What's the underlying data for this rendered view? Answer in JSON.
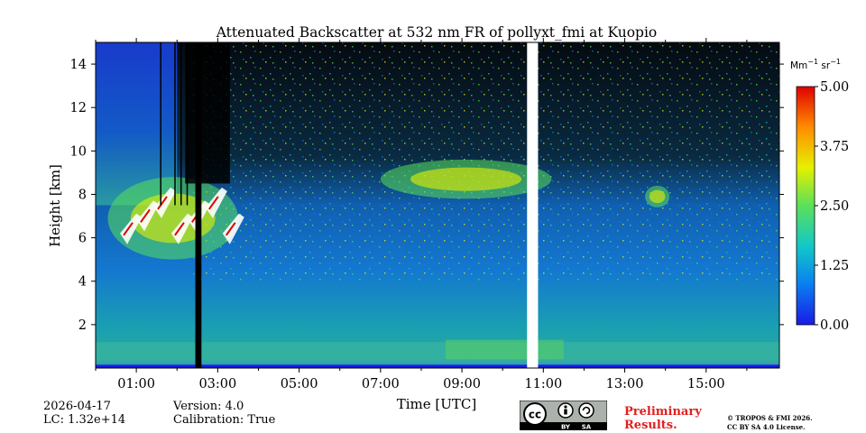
{
  "chart_data": {
    "type": "heatmap",
    "title": "Attenuated Backscatter at 532 nm FR of pollyxt_fmi at Kuopio",
    "xlabel": "Time [UTC]",
    "ylabel": "Height [km]",
    "xlim_hours": [
      0,
      16.8
    ],
    "ylim_km": [
      0,
      15
    ],
    "x_ticks": [
      {
        "hour": 1,
        "label": "01:00"
      },
      {
        "hour": 3,
        "label": "03:00"
      },
      {
        "hour": 5,
        "label": "05:00"
      },
      {
        "hour": 7,
        "label": "07:00"
      },
      {
        "hour": 9,
        "label": "09:00"
      },
      {
        "hour": 11,
        "label": "11:00"
      },
      {
        "hour": 13,
        "label": "13:00"
      },
      {
        "hour": 15,
        "label": "15:00"
      }
    ],
    "y_ticks": [
      {
        "km": 2,
        "label": "2"
      },
      {
        "km": 4,
        "label": "4"
      },
      {
        "km": 6,
        "label": "6"
      },
      {
        "km": 8,
        "label": "8"
      },
      {
        "km": 10,
        "label": "10"
      },
      {
        "km": 12,
        "label": "12"
      },
      {
        "km": 14,
        "label": "14"
      }
    ],
    "colorbar": {
      "unit_base": "Mm",
      "unit_exp1": "−1",
      "unit_mid": " sr",
      "unit_exp2": "−1",
      "range": [
        0,
        5
      ],
      "ticks": [
        {
          "value": 0,
          "label": "0.00"
        },
        {
          "value": 1.25,
          "label": "1.25"
        },
        {
          "value": 2.5,
          "label": "2.50"
        },
        {
          "value": 3.75,
          "label": "3.75"
        },
        {
          "value": 5,
          "label": "5.00"
        }
      ],
      "colors": [
        "#1a1ae6",
        "#0a7ff0",
        "#12c8c8",
        "#5ae05a",
        "#e6f000",
        "#ff8c00",
        "#e00000"
      ]
    },
    "features": [
      {
        "kind": "cloud",
        "label": "mid-level cloud",
        "t_start": 0.3,
        "t_end": 3.5,
        "h_bottom": 5.0,
        "h_top": 8.8
      },
      {
        "kind": "cloud",
        "label": "upper layer",
        "t_start": 7.0,
        "t_end": 11.2,
        "h_bottom": 7.8,
        "h_top": 9.6
      },
      {
        "kind": "cloud",
        "label": "thin cloud",
        "t_start": 13.5,
        "t_end": 14.1,
        "h_bottom": 7.4,
        "h_top": 8.4
      },
      {
        "kind": "no-signal",
        "t_start": 2.45,
        "t_end": 2.6,
        "h_bottom": 0,
        "h_top": 15
      },
      {
        "kind": "data-gap",
        "t_start": 10.6,
        "t_end": 10.87,
        "h_bottom": 0,
        "h_top": 15
      }
    ]
  },
  "footer": {
    "date": "2026-04-17",
    "lc": "LC: 1.32e+14",
    "version": "Version: 4.0",
    "calibration": "Calibration: True",
    "preliminary_line1": "Preliminary",
    "preliminary_line2": "Results.",
    "credit_line1": "© TROPOS & FMI 2026.",
    "credit_line2": "CC BY SA 4.0 License.",
    "badge_by": "BY",
    "badge_sa": "SA"
  }
}
